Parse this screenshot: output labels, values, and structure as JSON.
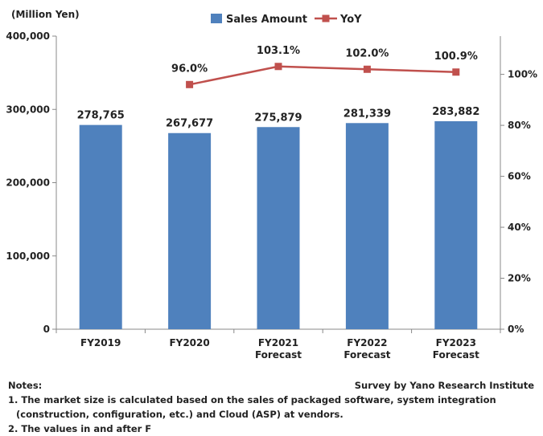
{
  "chart_data": {
    "type": "bar",
    "y_left_unit": "(Million Yen)",
    "categories": [
      [
        "FY2019"
      ],
      [
        "FY2020"
      ],
      [
        "FY2021",
        "Forecast"
      ],
      [
        "FY2022",
        "Forecast"
      ],
      [
        "FY2023",
        "Forecast"
      ]
    ],
    "series": [
      {
        "name": "Sales Amount",
        "type": "bar",
        "axis": "left",
        "values": [
          278765,
          267677,
          275879,
          281339,
          283882
        ],
        "labels": [
          "278,765",
          "267,677",
          "275,879",
          "281,339",
          "283,882"
        ],
        "color": "#4f81bd"
      },
      {
        "name": "YoY",
        "type": "line",
        "axis": "right",
        "values": [
          null,
          96.0,
          103.1,
          102.0,
          100.9
        ],
        "labels": [
          "",
          "96.0%",
          "103.1%",
          "102.0%",
          "100.9%"
        ],
        "color": "#c0504d"
      }
    ],
    "ylim_left": [
      0,
      400000
    ],
    "yticks_left": [
      "0",
      "100,000",
      "200,000",
      "300,000",
      "400,000"
    ],
    "ylim_right": [
      0,
      115
    ],
    "yticks_right_values": [
      0,
      20,
      40,
      60,
      80,
      100
    ],
    "yticks_right": [
      "0%",
      "20%",
      "40%",
      "60%",
      "80%",
      "100%"
    ],
    "legend_placement": "top-center",
    "grid": false
  },
  "notes": {
    "heading": "Notes:",
    "source": "Survey by Yano Research Institute",
    "line1": "1. The market size is calculated based on the sales of packaged software, system integration",
    "line1_cont": "(construction, configuration, etc.) and Cloud (ASP) at vendors.",
    "line2": "2. The values in and after F"
  }
}
